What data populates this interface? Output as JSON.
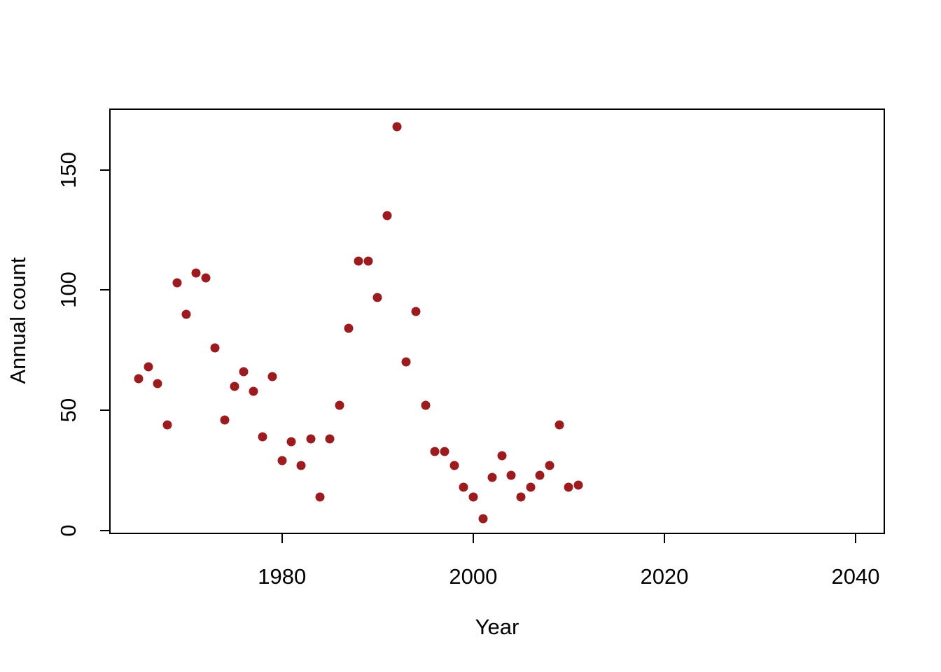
{
  "figure": {
    "background": "#ffffff"
  },
  "chart_data": {
    "type": "scatter",
    "title": "",
    "xlabel": "Year",
    "ylabel": "Annual count",
    "x": [
      1965,
      1966,
      1967,
      1968,
      1969,
      1970,
      1971,
      1972,
      1973,
      1974,
      1975,
      1976,
      1977,
      1978,
      1979,
      1980,
      1981,
      1982,
      1983,
      1984,
      1985,
      1986,
      1987,
      1988,
      1989,
      1990,
      1991,
      1992,
      1993,
      1994,
      1995,
      1996,
      1997,
      1998,
      1999,
      2000,
      2001,
      2002,
      2003,
      2004,
      2005,
      2006,
      2007,
      2008,
      2009,
      2010,
      2011
    ],
    "y": [
      63,
      68,
      61,
      44,
      103,
      90,
      107,
      105,
      76,
      46,
      60,
      66,
      58,
      39,
      64,
      29,
      37,
      27,
      38,
      14,
      38,
      52,
      84,
      112,
      112,
      97,
      131,
      168,
      70,
      91,
      52,
      33,
      33,
      27,
      18,
      14,
      5,
      22,
      31,
      23,
      14,
      18,
      23,
      27,
      44,
      18,
      19
    ],
    "x_ticks": [
      1980,
      2000,
      2020,
      2040
    ],
    "y_ticks": [
      0,
      50,
      100,
      150
    ],
    "xlim": [
      1962,
      2043
    ],
    "ylim": [
      -1.2,
      175.2
    ],
    "grid": false,
    "legend_position": "none",
    "point_color": "#9b1b1e",
    "axis_color": "#000000"
  }
}
